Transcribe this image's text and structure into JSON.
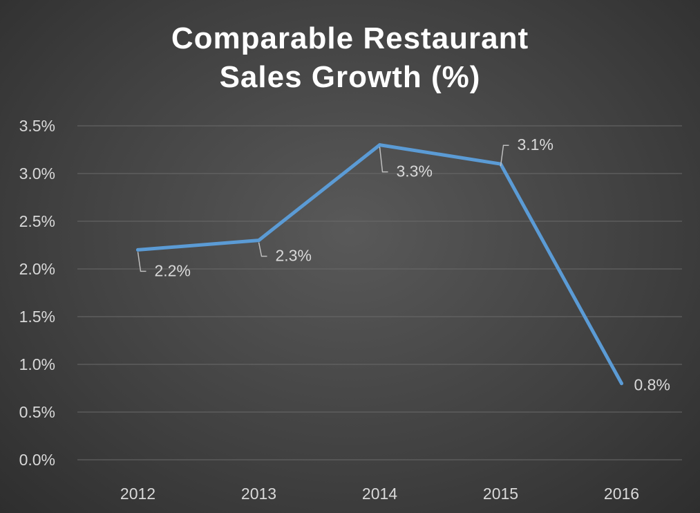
{
  "chart_data": {
    "type": "line",
    "title_line1": "Comparable Restaurant",
    "title_line2": "Sales Growth (%)",
    "categories": [
      "2012",
      "2013",
      "2014",
      "2015",
      "2016"
    ],
    "series": [
      {
        "name": "Comparable Restaurant Sales Growth (%)",
        "values": [
          2.2,
          2.3,
          3.3,
          3.1,
          0.8
        ]
      }
    ],
    "data_labels": [
      "2.2%",
      "2.3%",
      "3.3%",
      "3.1%",
      "0.8%"
    ],
    "y_ticks": [
      "0.0%",
      "0.5%",
      "1.0%",
      "1.5%",
      "2.0%",
      "2.5%",
      "3.0%",
      "3.5%"
    ],
    "ylim": [
      0,
      3.5
    ],
    "xlabel": "",
    "ylabel": "",
    "grid": true,
    "legend": "none",
    "colors": {
      "line": "#5b9bd5",
      "grid": "#6a6a6a",
      "text": "#d9d9d9"
    }
  }
}
